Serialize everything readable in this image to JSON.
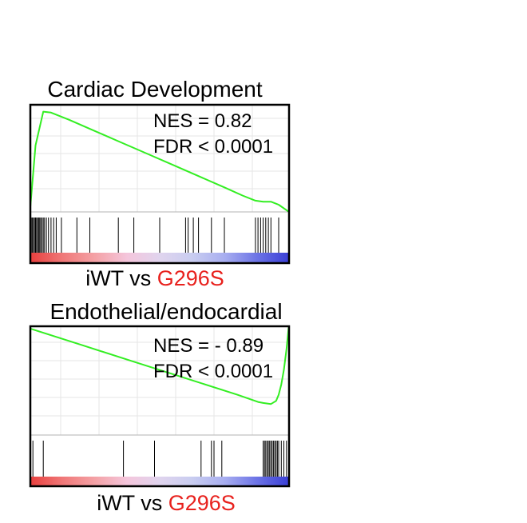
{
  "colors": {
    "curve": "#33ee22",
    "hit": "#000000",
    "accent": "#e8211d",
    "gradient": [
      "#e8403e",
      "#f07878",
      "#f4a2a6",
      "#f4c6dc",
      "#e0d4ee",
      "#c9cdf0",
      "#a8aef0",
      "#6d74e6",
      "#3a3fd6"
    ]
  },
  "chart_data": [
    {
      "type": "line",
      "title": "Cardiac Development",
      "stats": {
        "nes": "NES = 0.82",
        "fdr": "FDR < 0.0001"
      },
      "caption": {
        "left": "iWT vs",
        "right": "G296S"
      },
      "x": [
        0,
        0.02,
        0.05,
        0.08,
        0.15,
        0.25,
        0.35,
        0.45,
        0.55,
        0.65,
        0.75,
        0.82,
        0.87,
        0.9,
        0.93,
        0.96,
        1.0
      ],
      "y": [
        0.05,
        0.65,
        0.98,
        0.97,
        0.9,
        0.79,
        0.68,
        0.57,
        0.46,
        0.35,
        0.24,
        0.16,
        0.11,
        0.1,
        0.1,
        0.07,
        0.0
      ],
      "ylim": [
        0,
        1
      ],
      "hits": [
        0.0,
        0.004,
        0.008,
        0.012,
        0.016,
        0.02,
        0.024,
        0.028,
        0.032,
        0.036,
        0.04,
        0.045,
        0.05,
        0.055,
        0.062,
        0.07,
        0.08,
        0.09,
        0.1,
        0.12,
        0.18,
        0.23,
        0.34,
        0.4,
        0.5,
        0.6,
        0.61,
        0.63,
        0.65,
        0.7,
        0.75,
        0.87,
        0.88,
        0.89,
        0.9,
        0.91,
        0.92,
        0.93,
        0.96
      ],
      "gradient_direction": "red-to-blue"
    },
    {
      "type": "line",
      "title": "Endothelial/endocardial",
      "stats": {
        "nes": "NES = - 0.89",
        "fdr": "FDR < 0.0001"
      },
      "caption": {
        "left": "iWT vs",
        "right": "G296S"
      },
      "x": [
        0,
        0.2,
        0.4,
        0.6,
        0.8,
        0.88,
        0.9,
        0.93,
        0.95,
        0.96,
        0.97,
        0.98,
        0.99,
        1.0
      ],
      "y": [
        1.0,
        0.84,
        0.68,
        0.52,
        0.36,
        0.29,
        0.28,
        0.27,
        0.3,
        0.36,
        0.46,
        0.6,
        0.8,
        1.05
      ],
      "ylim": [
        0,
        1
      ],
      "hits": [
        0.01,
        0.05,
        0.36,
        0.48,
        0.66,
        0.7,
        0.71,
        0.74,
        0.9,
        0.905,
        0.91,
        0.915,
        0.92,
        0.925,
        0.93,
        0.935,
        0.94,
        0.945,
        0.95,
        0.955,
        0.96,
        0.97,
        0.98,
        0.99
      ],
      "gradient_direction": "red-to-blue"
    }
  ]
}
